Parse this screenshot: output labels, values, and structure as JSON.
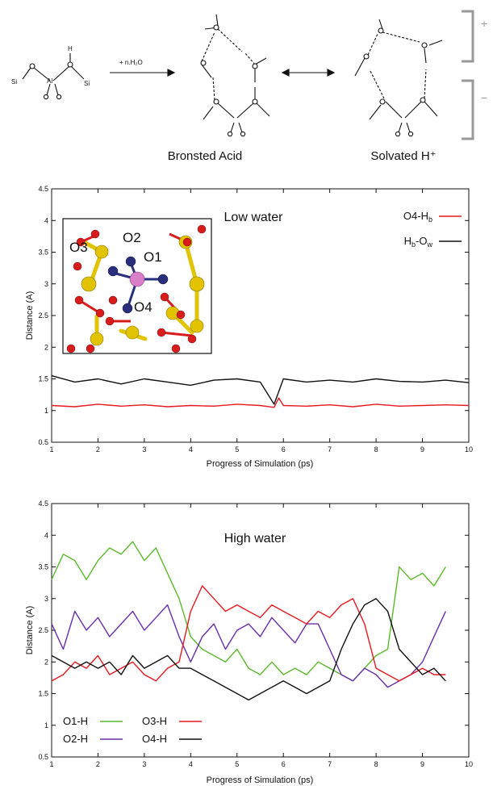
{
  "scheme": {
    "reagent_label": "+ n.H₂O",
    "bronsted_label": "Bronsted Acid",
    "solvated_label": "Solvated H⁺",
    "plus_sign": "+",
    "minus_sign": "−",
    "atoms": {
      "si": "Si",
      "al": "Al",
      "o": "O",
      "h": "H"
    }
  },
  "chart_data": [
    {
      "type": "line",
      "title": "Low water",
      "xlabel": "Progress of Simulation (ps)",
      "ylabel": "Distance (A)",
      "xlim": [
        1,
        10
      ],
      "ylim": [
        0.5,
        4.5
      ],
      "xticks": [
        1,
        2,
        3,
        4,
        5,
        6,
        7,
        8,
        9,
        10
      ],
      "yticks": [
        0.5,
        1,
        1.5,
        2,
        2.5,
        3,
        3.5,
        4,
        4.5
      ],
      "grid": false,
      "legend_position": "top-right",
      "inset_labels": [
        "O3",
        "O2",
        "O1",
        "O4"
      ],
      "series": [
        {
          "name": "O4-Hb",
          "name_main": "O4-H",
          "name_sub": "b",
          "color": "#e8191f",
          "x": [
            1.0,
            1.5,
            2.0,
            2.5,
            3.0,
            3.5,
            4.0,
            4.5,
            5.0,
            5.5,
            5.8,
            5.9,
            6.0,
            6.5,
            7.0,
            7.5,
            8.0,
            8.5,
            9.0,
            9.5,
            10.0
          ],
          "y": [
            1.08,
            1.06,
            1.1,
            1.07,
            1.09,
            1.06,
            1.08,
            1.07,
            1.1,
            1.08,
            1.05,
            1.2,
            1.08,
            1.07,
            1.09,
            1.06,
            1.1,
            1.07,
            1.08,
            1.09,
            1.08
          ]
        },
        {
          "name": "Hb-Ow",
          "name_main": "H",
          "name_sub": "b",
          "name_mid": "-O",
          "name_sub2": "w",
          "color": "#111111",
          "x": [
            1.0,
            1.5,
            2.0,
            2.5,
            3.0,
            3.5,
            4.0,
            4.5,
            5.0,
            5.5,
            5.8,
            5.9,
            6.0,
            6.5,
            7.0,
            7.5,
            8.0,
            8.5,
            9.0,
            9.5,
            10.0
          ],
          "y": [
            1.55,
            1.45,
            1.5,
            1.42,
            1.5,
            1.45,
            1.4,
            1.48,
            1.5,
            1.45,
            1.1,
            1.3,
            1.5,
            1.45,
            1.48,
            1.45,
            1.5,
            1.46,
            1.45,
            1.48,
            1.44
          ]
        }
      ]
    },
    {
      "type": "line",
      "title": "High water",
      "xlabel": "Progress of Simulation (ps)",
      "ylabel": "Distance (A)",
      "xlim": [
        1,
        10
      ],
      "ylim": [
        0.5,
        4.5
      ],
      "xticks": [
        1,
        2,
        3,
        4,
        5,
        6,
        7,
        8,
        9,
        10
      ],
      "yticks": [
        0.5,
        1,
        1.5,
        2,
        2.5,
        3,
        3.5,
        4,
        4.5
      ],
      "grid": false,
      "legend_position": "bottom-left",
      "series": [
        {
          "name": "O1-H",
          "color": "#5cb92e",
          "x": [
            1.0,
            1.25,
            1.5,
            1.75,
            2.0,
            2.25,
            2.5,
            2.75,
            3.0,
            3.25,
            3.5,
            3.75,
            4.0,
            4.25,
            4.5,
            4.75,
            5.0,
            5.25,
            5.5,
            5.75,
            6.0,
            6.25,
            6.5,
            6.75,
            7.0,
            7.25,
            7.5,
            7.75,
            8.0,
            8.25,
            8.5,
            8.75,
            9.0,
            9.25,
            9.5
          ],
          "y": [
            3.3,
            3.7,
            3.6,
            3.3,
            3.6,
            3.8,
            3.7,
            3.9,
            3.6,
            3.8,
            3.4,
            3.0,
            2.4,
            2.2,
            2.1,
            2.0,
            2.2,
            1.9,
            1.8,
            2.0,
            1.8,
            1.9,
            1.8,
            2.0,
            1.9,
            1.8,
            1.7,
            1.9,
            2.1,
            2.2,
            3.5,
            3.3,
            3.4,
            3.2,
            3.5
          ]
        },
        {
          "name": "O2-H",
          "color": "#6a2fa8",
          "x": [
            1.0,
            1.25,
            1.5,
            1.75,
            2.0,
            2.25,
            2.5,
            2.75,
            3.0,
            3.25,
            3.5,
            3.75,
            4.0,
            4.25,
            4.5,
            4.75,
            5.0,
            5.25,
            5.5,
            5.75,
            6.0,
            6.25,
            6.5,
            6.75,
            7.0,
            7.25,
            7.5,
            7.75,
            8.0,
            8.25,
            8.5,
            8.75,
            9.0,
            9.25,
            9.5
          ],
          "y": [
            2.6,
            2.2,
            2.8,
            2.5,
            2.7,
            2.4,
            2.6,
            2.8,
            2.5,
            2.7,
            2.9,
            2.4,
            2.0,
            2.4,
            2.6,
            2.2,
            2.5,
            2.6,
            2.4,
            2.7,
            2.5,
            2.3,
            2.6,
            2.6,
            2.2,
            1.8,
            1.7,
            1.9,
            1.8,
            1.6,
            1.7,
            1.8,
            2.0,
            2.4,
            2.8
          ]
        },
        {
          "name": "O3-H",
          "color": "#e8191f",
          "x": [
            1.0,
            1.25,
            1.5,
            1.75,
            2.0,
            2.25,
            2.5,
            2.75,
            3.0,
            3.25,
            3.5,
            3.75,
            4.0,
            4.25,
            4.5,
            4.75,
            5.0,
            5.25,
            5.5,
            5.75,
            6.0,
            6.25,
            6.5,
            6.75,
            7.0,
            7.25,
            7.5,
            7.75,
            8.0,
            8.25,
            8.5,
            8.75,
            9.0,
            9.25,
            9.5
          ],
          "y": [
            1.7,
            1.8,
            2.0,
            1.9,
            2.1,
            1.8,
            1.9,
            2.0,
            1.8,
            1.7,
            1.9,
            2.0,
            2.8,
            3.2,
            3.0,
            2.8,
            2.9,
            2.8,
            2.7,
            2.9,
            2.8,
            2.7,
            2.6,
            2.8,
            2.7,
            2.9,
            3.0,
            2.6,
            1.9,
            1.8,
            1.7,
            1.8,
            1.9,
            1.8,
            1.8
          ]
        },
        {
          "name": "O4-H",
          "color": "#111111",
          "x": [
            1.0,
            1.25,
            1.5,
            1.75,
            2.0,
            2.25,
            2.5,
            2.75,
            3.0,
            3.25,
            3.5,
            3.75,
            4.0,
            4.25,
            4.5,
            4.75,
            5.0,
            5.25,
            5.5,
            5.75,
            6.0,
            6.25,
            6.5,
            6.75,
            7.0,
            7.25,
            7.5,
            7.75,
            8.0,
            8.25,
            8.5,
            8.75,
            9.0,
            9.25,
            9.5
          ],
          "y": [
            2.1,
            2.0,
            1.9,
            2.0,
            1.9,
            2.0,
            1.8,
            2.1,
            1.9,
            2.0,
            2.1,
            1.9,
            1.9,
            1.8,
            1.7,
            1.6,
            1.5,
            1.4,
            1.5,
            1.6,
            1.7,
            1.6,
            1.5,
            1.6,
            1.7,
            2.2,
            2.6,
            2.9,
            3.0,
            2.8,
            2.2,
            2.0,
            1.8,
            1.9,
            1.7
          ]
        }
      ]
    }
  ]
}
